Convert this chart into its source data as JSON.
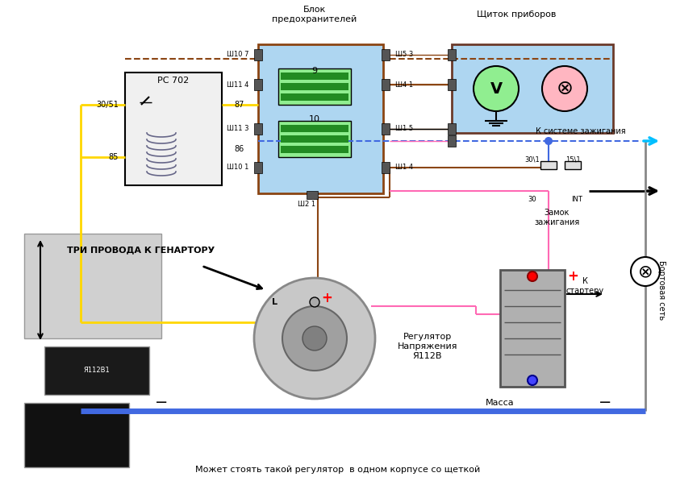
{
  "title": "",
  "bg_color": "#ffffff",
  "fig_width": 8.38,
  "fig_height": 5.97,
  "labels": {
    "blok": "Блок\nпредохранителей",
    "schitok": "Щиток приборов",
    "rc702": "РС 702",
    "tri_provoda": "ТРИ ПРОВОДА К ГЕНАРТОРУ",
    "zamok": "Замок\nзажигания",
    "k_sisteme": "К системе зажигания",
    "k_starteru": "К\nстартеру",
    "bortovaya": "Бортовая сеть",
    "massa": "Масса",
    "regulator": "Регулятор\nНапряжения\nЯ112В",
    "mozhet": "Может стоять такой регулятор  в одном корпусе со щеткой",
    "sh107": "Ш10 7",
    "sh114": "Ш11 4",
    "sh113": "Ш11 3",
    "sh101": "Ш10 1",
    "sh53": "Ш5 3",
    "sh41": "Ш4 1",
    "sh15": "Ш1 5",
    "sh14": "Ш1 4",
    "sh21": "Ш2 1",
    "n30_51": "30/51",
    "n87": "87",
    "n86": "86",
    "n85": "85",
    "n30_1": "30\\1",
    "n15_1": "15\\1",
    "n30": "30",
    "nINT": "INT",
    "n9": "9",
    "n10": "10",
    "L": "L"
  },
  "colors": {
    "yellow": "#FFD700",
    "brown": "#8B4513",
    "pink": "#FF69B4",
    "blue_line": "#4169E1",
    "cyan_arrow": "#00BFFF",
    "black": "#000000",
    "light_blue_box": "#ADD8E6",
    "green_circle": "#32CD32",
    "pink_circle": "#FFB6C1",
    "gray_box": "#A0A0A0",
    "dark_brown": "#6B3A2A",
    "relay_bg": "#f0f0f0",
    "fuse_bg": "#AED6F1",
    "schitok_bg": "#AED6F1",
    "battery_bg": "#B0B0B0",
    "dashed_brown": "#8B4513",
    "ground_blue": "#4169E1"
  }
}
